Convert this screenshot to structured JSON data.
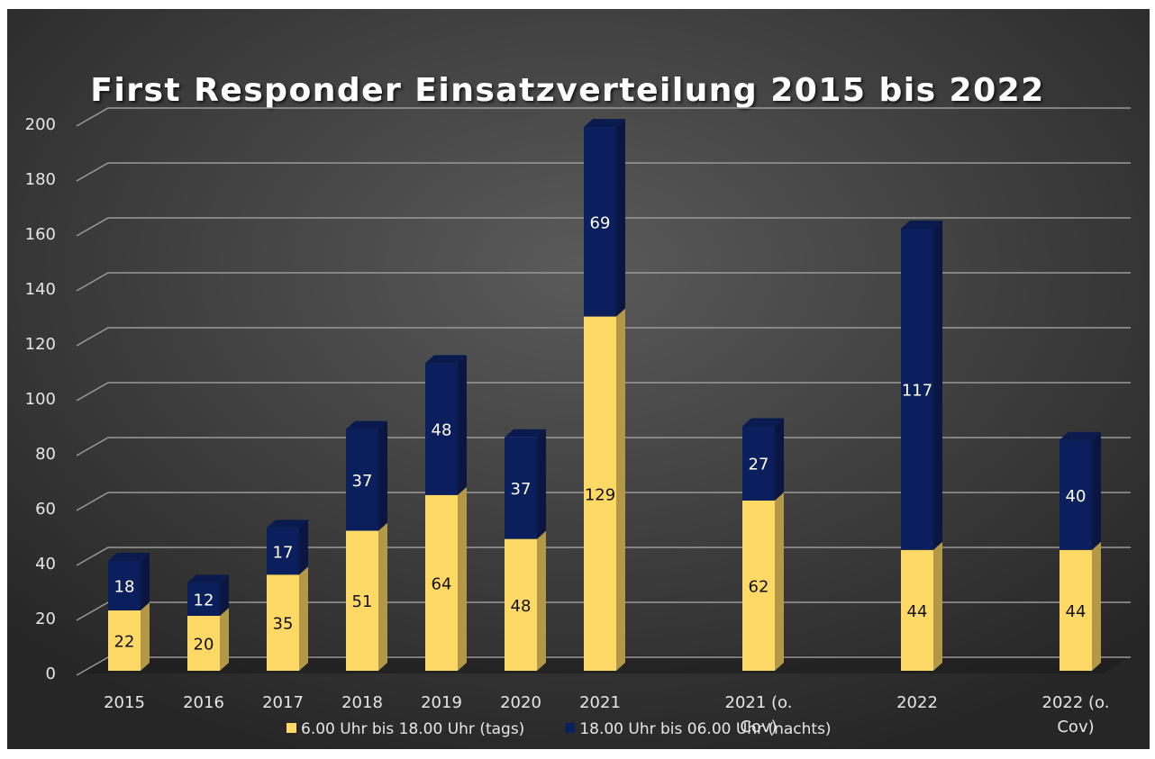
{
  "chart_data": {
    "type": "bar",
    "stacked": true,
    "title": "First Responder Einsatzverteilung 2015 bis 2022",
    "categories": [
      "2015",
      "2016",
      "2017",
      "2018",
      "2019",
      "2020",
      "2021",
      null,
      "2021 (o. Cov)",
      null,
      "2022",
      null,
      "2022 (o. Cov)"
    ],
    "series": [
      {
        "name": "6.00 Uhr bis 18.00 Uhr (tags)",
        "color": "#ffd966",
        "values": [
          22,
          20,
          35,
          51,
          64,
          48,
          129,
          null,
          62,
          null,
          44,
          null,
          44
        ]
      },
      {
        "name": "18.00 Uhr bis 06.00 Uhr (nachts)",
        "color": "#0b1f5c",
        "values": [
          18,
          12,
          17,
          37,
          48,
          37,
          69,
          null,
          27,
          null,
          117,
          null,
          40
        ]
      }
    ],
    "ylim": [
      0,
      200
    ],
    "yticks": [
      0,
      20,
      40,
      60,
      80,
      100,
      120,
      140,
      160,
      180,
      200
    ],
    "grid": true,
    "legend": "bottom"
  }
}
